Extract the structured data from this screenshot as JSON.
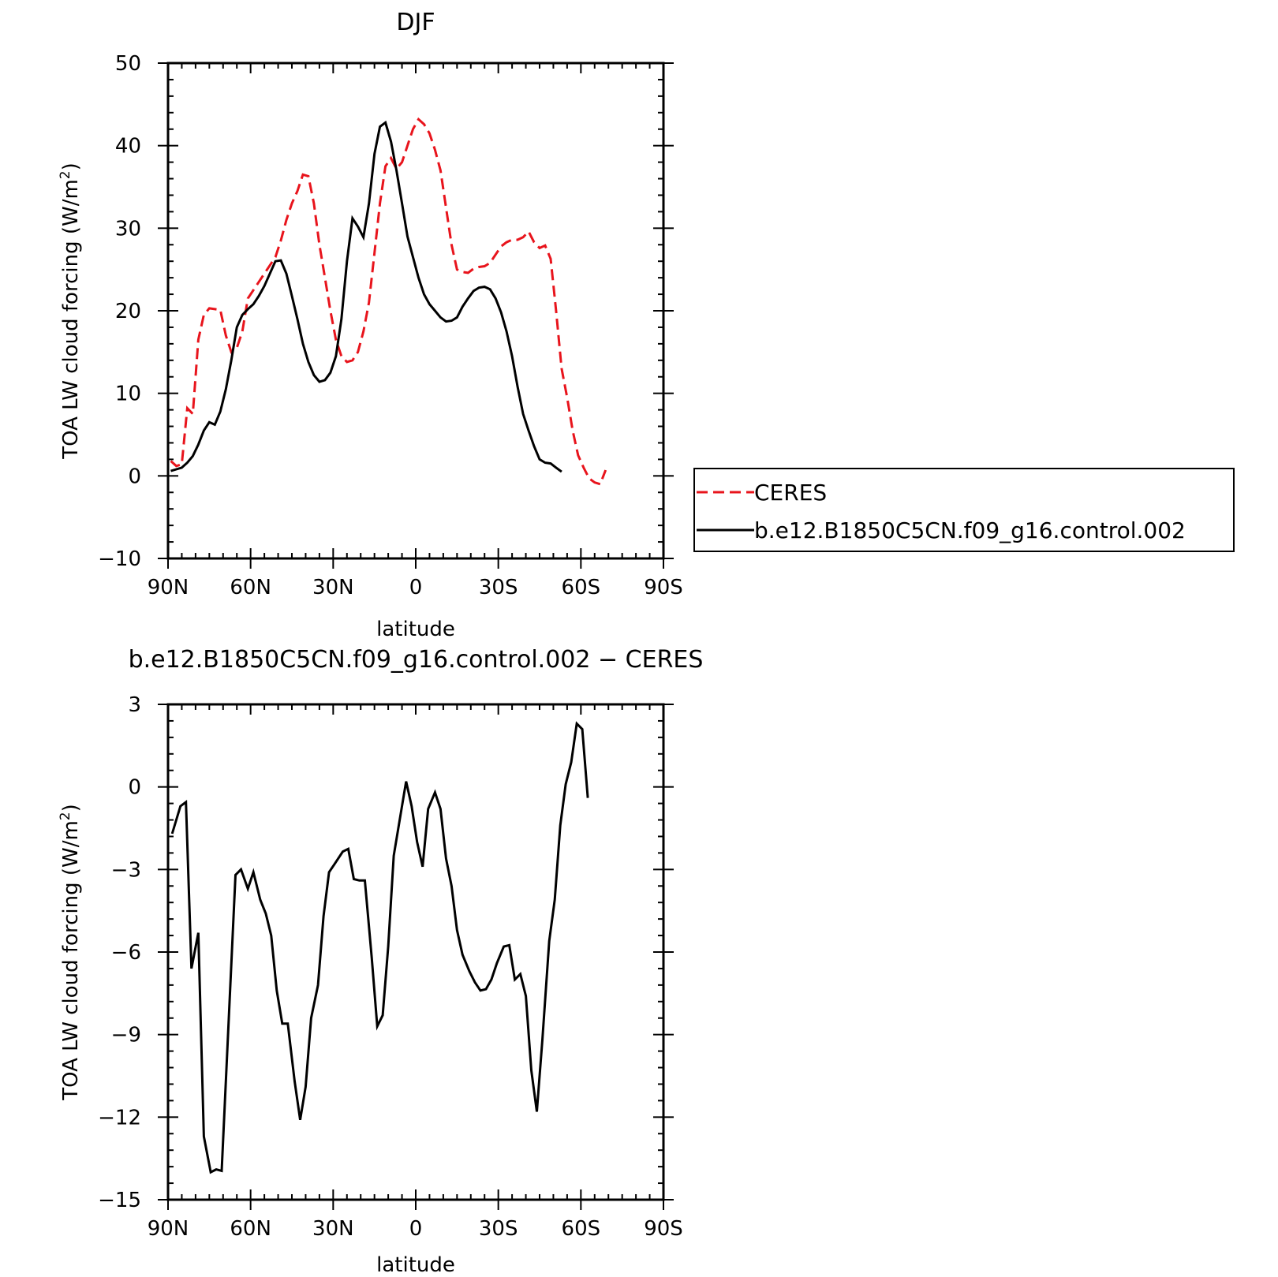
{
  "colors": {
    "ceres": "#e8141c",
    "model": "#000000"
  },
  "chart_data": [
    {
      "type": "line",
      "title": "DJF",
      "xlabel": "latitude",
      "ylabel": "TOA LW cloud forcing (W/m²)",
      "ylabel_parts": [
        "TOA LW cloud forcing (W/m",
        "2",
        ")"
      ],
      "xlim": [
        -90,
        90
      ],
      "ylim": [
        -10,
        50
      ],
      "xticks": [
        -90,
        -60,
        -30,
        0,
        30,
        60,
        90
      ],
      "xtick_labels": [
        "90N",
        "60N",
        "30N",
        "0",
        "30S",
        "60S",
        "90S"
      ],
      "yticks": [
        -10,
        0,
        10,
        20,
        30,
        40,
        50
      ],
      "ytick_labels": [
        "−10",
        "0",
        "10",
        "20",
        "30",
        "40",
        "50"
      ],
      "legend": {
        "placement": "right",
        "entries": [
          "CERES",
          "b.e12.B1850C5CN.f09_g16.control.002"
        ]
      },
      "series": [
        {
          "name": "CERES",
          "style": "dashed",
          "points": [
            [
              -89,
              1.8
            ],
            [
              -87,
              1.2
            ],
            [
              -85,
              1.4
            ],
            [
              -83,
              8.2
            ],
            [
              -81,
              7.5
            ],
            [
              -79,
              16.5
            ],
            [
              -77,
              19.5
            ],
            [
              -75,
              20.3
            ],
            [
              -73,
              20.2
            ],
            [
              -71,
              20.1
            ],
            [
              -69,
              17.0
            ],
            [
              -67,
              15.0
            ],
            [
              -65,
              15.5
            ],
            [
              -63,
              17.5
            ],
            [
              -61,
              21.5
            ],
            [
              -59,
              22.5
            ],
            [
              -57,
              23.5
            ],
            [
              -55,
              24.5
            ],
            [
              -53,
              25.5
            ],
            [
              -51,
              26.5
            ],
            [
              -49,
              28.5
            ],
            [
              -47,
              31.0
            ],
            [
              -45,
              33.0
            ],
            [
              -43,
              34.5
            ],
            [
              -41,
              36.5
            ],
            [
              -39,
              36.3
            ],
            [
              -37,
              33.0
            ],
            [
              -35,
              28.0
            ],
            [
              -33,
              24.0
            ],
            [
              -31,
              20.0
            ],
            [
              -29,
              16.5
            ],
            [
              -27,
              14.5
            ],
            [
              -25,
              13.8
            ],
            [
              -23,
              14.0
            ],
            [
              -21,
              15.0
            ],
            [
              -19,
              17.5
            ],
            [
              -17,
              21.0
            ],
            [
              -15,
              27.0
            ],
            [
              -13,
              33.0
            ],
            [
              -11,
              37.5
            ],
            [
              -9,
              38.5
            ],
            [
              -7,
              37.2
            ],
            [
              -5,
              38.0
            ],
            [
              -3,
              40.0
            ],
            [
              -1,
              42.0
            ],
            [
              1,
              43.2
            ],
            [
              3,
              42.6
            ],
            [
              5,
              41.5
            ],
            [
              7,
              39.5
            ],
            [
              9,
              37.0
            ],
            [
              11,
              32.5
            ],
            [
              13,
              28.0
            ],
            [
              15,
              25.0
            ],
            [
              17,
              24.7
            ],
            [
              19,
              24.6
            ],
            [
              21,
              25.1
            ],
            [
              23,
              25.3
            ],
            [
              25,
              25.4
            ],
            [
              27,
              25.8
            ],
            [
              29,
              26.8
            ],
            [
              31,
              27.8
            ],
            [
              33,
              28.3
            ],
            [
              35,
              28.6
            ],
            [
              37,
              28.6
            ],
            [
              39,
              28.9
            ],
            [
              41,
              29.6
            ],
            [
              43,
              28.3
            ],
            [
              45,
              27.6
            ],
            [
              47,
              27.9
            ],
            [
              49,
              26.3
            ],
            [
              51,
              20.0
            ],
            [
              53,
              13.0
            ],
            [
              55,
              9.5
            ],
            [
              57,
              5.5
            ],
            [
              59,
              2.5
            ],
            [
              61,
              1.0
            ],
            [
              63,
              -0.3
            ],
            [
              65,
              -0.8
            ],
            [
              67,
              -1.0
            ],
            [
              69,
              0.7
            ]
          ]
        },
        {
          "name": "b.e12.B1850C5CN.f09_g16.control.002",
          "style": "solid",
          "points": [
            [
              -89,
              0.6
            ],
            [
              -87,
              0.8
            ],
            [
              -85,
              1.0
            ],
            [
              -83,
              1.6
            ],
            [
              -81,
              2.4
            ],
            [
              -79,
              3.8
            ],
            [
              -77,
              5.5
            ],
            [
              -75,
              6.5
            ],
            [
              -73,
              6.2
            ],
            [
              -71,
              7.8
            ],
            [
              -69,
              10.5
            ],
            [
              -67,
              14.0
            ],
            [
              -65,
              18.0
            ],
            [
              -63,
              19.5
            ],
            [
              -61,
              20.2
            ],
            [
              -59,
              20.8
            ],
            [
              -57,
              21.8
            ],
            [
              -55,
              23.0
            ],
            [
              -53,
              24.5
            ],
            [
              -51,
              26.0
            ],
            [
              -49,
              26.1
            ],
            [
              -47,
              24.5
            ],
            [
              -45,
              21.8
            ],
            [
              -43,
              19.0
            ],
            [
              -41,
              16.0
            ],
            [
              -39,
              13.8
            ],
            [
              -37,
              12.2
            ],
            [
              -35,
              11.4
            ],
            [
              -33,
              11.6
            ],
            [
              -31,
              12.5
            ],
            [
              -29,
              14.5
            ],
            [
              -27,
              19.0
            ],
            [
              -25,
              26.0
            ],
            [
              -23,
              31.2
            ],
            [
              -21,
              30.2
            ],
            [
              -19,
              28.9
            ],
            [
              -17,
              33.0
            ],
            [
              -15,
              39.0
            ],
            [
              -13,
              42.3
            ],
            [
              -11,
              42.8
            ],
            [
              -9,
              40.5
            ],
            [
              -7,
              37.0
            ],
            [
              -5,
              33.0
            ],
            [
              -3,
              29.0
            ],
            [
              -1,
              26.5
            ],
            [
              1,
              24.0
            ],
            [
              3,
              22.0
            ],
            [
              5,
              20.8
            ],
            [
              7,
              20.0
            ],
            [
              9,
              19.2
            ],
            [
              11,
              18.7
            ],
            [
              13,
              18.8
            ],
            [
              15,
              19.2
            ],
            [
              17,
              20.5
            ],
            [
              19,
              21.5
            ],
            [
              21,
              22.4
            ],
            [
              23,
              22.8
            ],
            [
              25,
              22.9
            ],
            [
              27,
              22.6
            ],
            [
              29,
              21.5
            ],
            [
              31,
              19.8
            ],
            [
              33,
              17.5
            ],
            [
              35,
              14.5
            ],
            [
              37,
              10.8
            ],
            [
              39,
              7.5
            ],
            [
              41,
              5.5
            ],
            [
              43,
              3.6
            ],
            [
              45,
              2.0
            ],
            [
              47,
              1.6
            ],
            [
              49,
              1.5
            ],
            [
              51,
              1.0
            ],
            [
              53,
              0.5
            ]
          ]
        }
      ]
    },
    {
      "type": "line",
      "title": "b.e12.B1850C5CN.f09_g16.control.002 − CERES",
      "xlabel": "latitude",
      "ylabel": "TOA LW cloud forcing (W/m²)",
      "ylabel_parts": [
        "TOA LW cloud forcing (W/m",
        "2",
        ")"
      ],
      "xlim": [
        -90,
        90
      ],
      "ylim": [
        -15,
        3
      ],
      "xticks": [
        -90,
        -60,
        -30,
        0,
        30,
        60,
        90
      ],
      "xtick_labels": [
        "90N",
        "60N",
        "30N",
        "0",
        "30S",
        "60S",
        "90S"
      ],
      "yticks": [
        -15,
        -12,
        -9,
        -6,
        -3,
        0,
        3
      ],
      "ytick_labels": [
        "−15",
        "−12",
        "−9",
        "−6",
        "−3",
        "0",
        "3"
      ],
      "series": [
        {
          "style": "solid",
          "points": [
            [
              -88.5,
              -1.7
            ],
            [
              -85.5,
              -0.7
            ],
            [
              -83.5,
              -0.55
            ],
            [
              -81.5,
              -6.6
            ],
            [
              -79,
              -5.3
            ],
            [
              -77,
              -12.7
            ],
            [
              -74.5,
              -14.0
            ],
            [
              -72.5,
              -13.9
            ],
            [
              -70.5,
              -13.95
            ],
            [
              -65.5,
              -3.2
            ],
            [
              -63.5,
              -3.0
            ],
            [
              -61,
              -3.7
            ],
            [
              -59,
              -3.1
            ],
            [
              -56.5,
              -4.1
            ],
            [
              -54.5,
              -4.6
            ],
            [
              -52.5,
              -5.4
            ],
            [
              -50.5,
              -7.4
            ],
            [
              -48.5,
              -8.6
            ],
            [
              -46.5,
              -8.6
            ],
            [
              -44,
              -10.7
            ],
            [
              -42,
              -12.1
            ],
            [
              -40,
              -10.9
            ],
            [
              -38,
              -8.4
            ],
            [
              -35.5,
              -7.2
            ],
            [
              -33.5,
              -4.7
            ],
            [
              -31.5,
              -3.1
            ],
            [
              -29.5,
              -2.8
            ],
            [
              -26.5,
              -2.35
            ],
            [
              -24.5,
              -2.25
            ],
            [
              -22.5,
              -3.35
            ],
            [
              -20.5,
              -3.4
            ],
            [
              -18.5,
              -3.4
            ],
            [
              -16,
              -6.2
            ],
            [
              -14,
              -8.7
            ],
            [
              -12,
              -8.3
            ],
            [
              -10,
              -5.8
            ],
            [
              -8,
              -2.5
            ],
            [
              -5.5,
              -1.0
            ],
            [
              -3.5,
              0.2
            ],
            [
              -1.5,
              -0.7
            ],
            [
              0.5,
              -2.0
            ],
            [
              2.5,
              -2.9
            ],
            [
              4.5,
              -0.8
            ],
            [
              7,
              -0.2
            ],
            [
              9,
              -0.8
            ],
            [
              11,
              -2.6
            ],
            [
              13,
              -3.6
            ],
            [
              15,
              -5.2
            ],
            [
              17,
              -6.1
            ],
            [
              19.5,
              -6.7
            ],
            [
              21.5,
              -7.1
            ],
            [
              23.5,
              -7.4
            ],
            [
              25.5,
              -7.35
            ],
            [
              27.5,
              -7.0
            ],
            [
              29.5,
              -6.4
            ],
            [
              32,
              -5.8
            ],
            [
              34,
              -5.75
            ],
            [
              36,
              -7.0
            ],
            [
              38,
              -6.8
            ],
            [
              40,
              -7.6
            ],
            [
              42,
              -10.3
            ],
            [
              44,
              -11.8
            ],
            [
              46,
              -9.2
            ],
            [
              48.5,
              -5.6
            ],
            [
              50.5,
              -4.1
            ],
            [
              52.5,
              -1.4
            ],
            [
              54.5,
              0.1
            ],
            [
              56.5,
              0.9
            ],
            [
              58.5,
              2.3
            ],
            [
              60.5,
              2.1
            ],
            [
              62.5,
              -0.4
            ]
          ]
        }
      ]
    }
  ]
}
